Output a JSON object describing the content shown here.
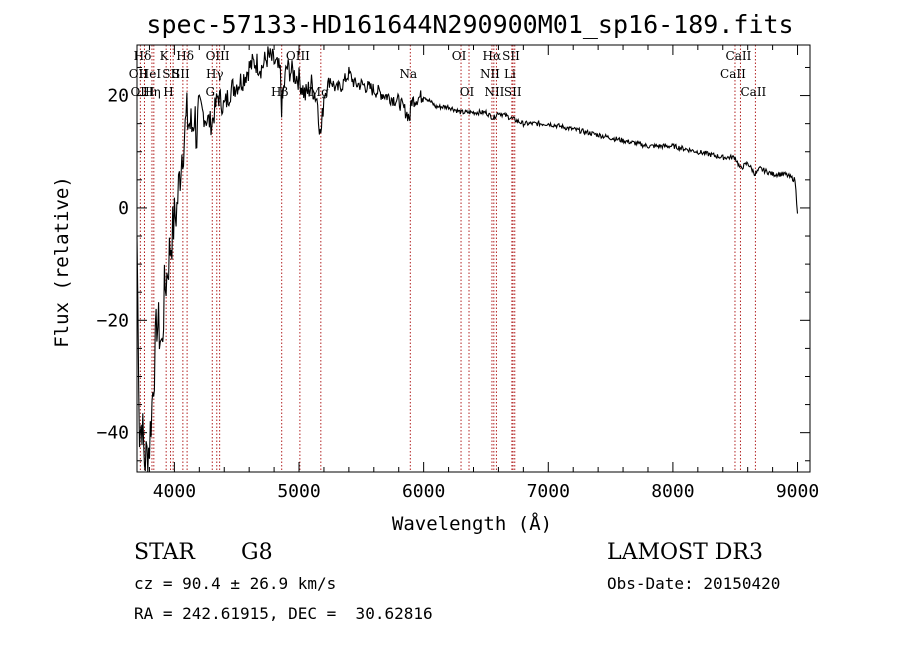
{
  "chart_data": {
    "type": "line",
    "title": "spec-57133-HD161644N290900M01_sp16-189.fits",
    "xlabel": "Wavelength (Å)",
    "ylabel": "Flux (relative)",
    "xlim": [
      3700,
      9100
    ],
    "ylim": [
      -47,
      29
    ],
    "xticks": [
      4000,
      5000,
      6000,
      7000,
      8000,
      9000
    ],
    "yticks": [
      -40,
      -20,
      0,
      20
    ],
    "xtick_labels": [
      "4000",
      "5000",
      "6000",
      "7000",
      "8000",
      "9000"
    ],
    "ytick_labels": [
      "−40",
      "−20",
      "0",
      "20"
    ],
    "series": [
      {
        "name": "spectrum",
        "x": [
          3700,
          3720,
          3740,
          3760,
          3780,
          3800,
          3820,
          3840,
          3860,
          3880,
          3900,
          3920,
          3940,
          3960,
          3980,
          4000,
          4020,
          4040,
          4060,
          4080,
          4100,
          4120,
          4140,
          4160,
          4180,
          4200,
          4250,
          4300,
          4350,
          4400,
          4450,
          4500,
          4550,
          4600,
          4650,
          4700,
          4750,
          4800,
          4850,
          4860,
          4900,
          4950,
          5000,
          5050,
          5100,
          5150,
          5170,
          5180,
          5200,
          5250,
          5300,
          5350,
          5400,
          5450,
          5500,
          5600,
          5700,
          5800,
          5890,
          5900,
          6000,
          6100,
          6200,
          6300,
          6400,
          6500,
          6560,
          6600,
          6700,
          6800,
          6900,
          7000,
          7200,
          7400,
          7600,
          7800,
          8000,
          8200,
          8400,
          8500,
          8540,
          8600,
          8660,
          8700,
          8800,
          8900,
          8980,
          9000
        ],
        "y": [
          -5,
          -40,
          -38,
          -45,
          -44,
          -42,
          -35,
          -28,
          -20,
          -22,
          -25,
          -15,
          -12,
          -8,
          -5,
          -2,
          0,
          5,
          10,
          13,
          16,
          15,
          14,
          17,
          13,
          18,
          16,
          15,
          20,
          18,
          21,
          22,
          23,
          25,
          26,
          25,
          27,
          26,
          24,
          18,
          25,
          24,
          23,
          20,
          22,
          19,
          13,
          14,
          20,
          23,
          21,
          22,
          24,
          22,
          22,
          21,
          20,
          19,
          16,
          19,
          20,
          18,
          18,
          17,
          17,
          17,
          16,
          17,
          16,
          15,
          15,
          15,
          14,
          13,
          12,
          11,
          11,
          10,
          9,
          9,
          7,
          8,
          6,
          7,
          6,
          6,
          5,
          -1
        ]
      }
    ],
    "line_markers": [
      {
        "label": "Hδ",
        "x": 3760,
        "row": 0
      },
      {
        "label": "OII",
        "x": 3727,
        "row": 1
      },
      {
        "label": "OIII",
        "x": 3760,
        "row": 2
      },
      {
        "label": "HeI",
        "x": 3820,
        "row": 1
      },
      {
        "label": "Hη",
        "x": 3835,
        "row": 2
      },
      {
        "label": "K",
        "x": 3934,
        "row": 0
      },
      {
        "label": "SII",
        "x": 3990,
        "row": 1
      },
      {
        "label": "H",
        "x": 3969,
        "row": 2
      },
      {
        "label": "Hδ",
        "x": 4102,
        "row": 0
      },
      {
        "label": "SII",
        "x": 4068,
        "row": 1
      },
      {
        "label": "OIII",
        "x": 4363,
        "row": 0
      },
      {
        "label": "Hγ",
        "x": 4340,
        "row": 1
      },
      {
        "label": "G",
        "x": 4304,
        "row": 2
      },
      {
        "label": "OIII",
        "x": 5007,
        "row": 0
      },
      {
        "label": "Hβ",
        "x": 4861,
        "row": 2
      },
      {
        "label": "Mg",
        "x": 5175,
        "row": 2
      },
      {
        "label": "Na",
        "x": 5893,
        "row": 1
      },
      {
        "label": "OI",
        "x": 6300,
        "row": 0
      },
      {
        "label": "OI",
        "x": 6364,
        "row": 2
      },
      {
        "label": "Hα",
        "x": 6563,
        "row": 0
      },
      {
        "label": "NII",
        "x": 6548,
        "row": 1
      },
      {
        "label": "NII",
        "x": 6584,
        "row": 2
      },
      {
        "label": "SII",
        "x": 6717,
        "row": 0
      },
      {
        "label": "Li",
        "x": 6708,
        "row": 1
      },
      {
        "label": "SII",
        "x": 6731,
        "row": 2
      },
      {
        "label": "CaII",
        "x": 8542,
        "row": 0
      },
      {
        "label": "CaII",
        "x": 8498,
        "row": 1
      },
      {
        "label": "CaII",
        "x": 8662,
        "row": 2
      }
    ]
  },
  "info": {
    "class_text": "STAR",
    "subclass_text": "G8",
    "survey_text": "LAMOST DR3",
    "cz_text": "cz = 90.4 ± 26.9 km/s",
    "obs_date_text": "Obs-Date: 20150420",
    "radec_text": "RA = 242.61915, DEC =  30.62816"
  },
  "colors": {
    "marker_line": "#b22222",
    "spectrum": "#000000"
  }
}
